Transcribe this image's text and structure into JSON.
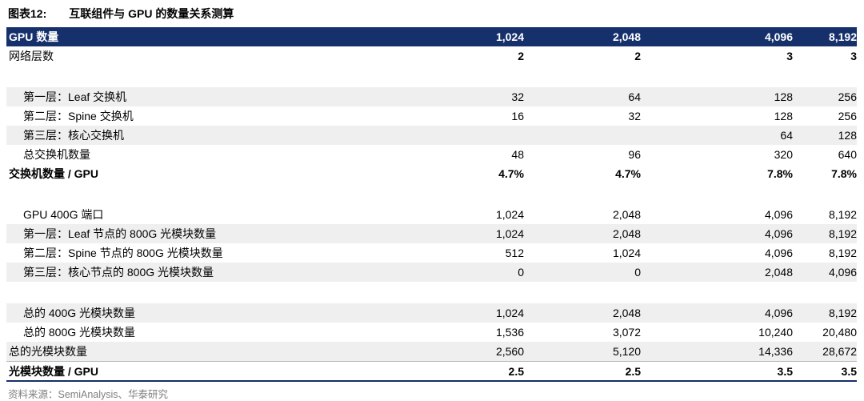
{
  "title": {
    "tag": "图表12:",
    "text": "互联组件与 GPU 的数量关系测算"
  },
  "chart_data": {
    "type": "table",
    "header": {
      "label": "GPU 数量",
      "values": [
        "1,024",
        "2,048",
        "4,096",
        "8,192"
      ]
    },
    "rows": [
      {
        "label": "网络层数",
        "values": [
          "2",
          "2",
          "3",
          "3"
        ],
        "indent": false,
        "shaded": false,
        "bold": false,
        "bold_values": true
      },
      {
        "type": "spacer"
      },
      {
        "label": "第一层：Leaf 交换机",
        "values": [
          "32",
          "64",
          "128",
          "256"
        ],
        "indent": true,
        "shaded": true,
        "bold": false,
        "bold_values": false
      },
      {
        "label": "第二层：Spine 交换机",
        "values": [
          "16",
          "32",
          "128",
          "256"
        ],
        "indent": true,
        "shaded": false,
        "bold": false,
        "bold_values": false
      },
      {
        "label": "第三层：核心交换机",
        "values": [
          "",
          "",
          "64",
          "128"
        ],
        "indent": true,
        "shaded": true,
        "bold": false,
        "bold_values": false
      },
      {
        "label": "总交换机数量",
        "values": [
          "48",
          "96",
          "320",
          "640"
        ],
        "indent": true,
        "shaded": false,
        "bold": false,
        "bold_values": false
      },
      {
        "label": "交换机数量 / GPU",
        "values": [
          "4.7%",
          "4.7%",
          "7.8%",
          "7.8%"
        ],
        "indent": false,
        "shaded": false,
        "bold": true,
        "bold_values": true
      },
      {
        "type": "spacer"
      },
      {
        "label": "GPU 400G 端口",
        "values": [
          "1,024",
          "2,048",
          "4,096",
          "8,192"
        ],
        "indent": true,
        "shaded": false,
        "bold": false,
        "bold_values": false
      },
      {
        "label": "第一层：Leaf 节点的 800G 光模块数量",
        "values": [
          "1,024",
          "2,048",
          "4,096",
          "8,192"
        ],
        "indent": true,
        "shaded": true,
        "bold": false,
        "bold_values": false
      },
      {
        "label": "第二层：Spine 节点的 800G 光模块数量",
        "values": [
          "512",
          "1,024",
          "4,096",
          "8,192"
        ],
        "indent": true,
        "shaded": false,
        "bold": false,
        "bold_values": false
      },
      {
        "label": "第三层：核心节点的 800G 光模块数量",
        "values": [
          "0",
          "0",
          "2,048",
          "4,096"
        ],
        "indent": true,
        "shaded": true,
        "bold": false,
        "bold_values": false
      },
      {
        "type": "spacer"
      },
      {
        "label": "总的 400G 光模块数量",
        "values": [
          "1,024",
          "2,048",
          "4,096",
          "8,192"
        ],
        "indent": true,
        "shaded": true,
        "bold": false,
        "bold_values": false
      },
      {
        "label": "总的 800G 光模块数量",
        "values": [
          "1,536",
          "3,072",
          "10,240",
          "20,480"
        ],
        "indent": true,
        "shaded": false,
        "bold": false,
        "bold_values": false
      },
      {
        "label": "总的光模块数量",
        "values": [
          "2,560",
          "5,120",
          "14,336",
          "28,672"
        ],
        "indent": false,
        "shaded": true,
        "bold": false,
        "bold_values": false
      },
      {
        "label": "光模块数量 / GPU",
        "values": [
          "2.5",
          "2.5",
          "3.5",
          "3.5"
        ],
        "indent": false,
        "shaded": false,
        "bold": true,
        "bold_values": true,
        "topline": true
      }
    ]
  },
  "source": "资料来源：SemiAnalysis、华泰研究",
  "colors": {
    "header_bg": "#16306B",
    "header_text": "#FFFFFF",
    "shaded_row": "#EFEFEF",
    "source_text": "#7F7F7F"
  }
}
